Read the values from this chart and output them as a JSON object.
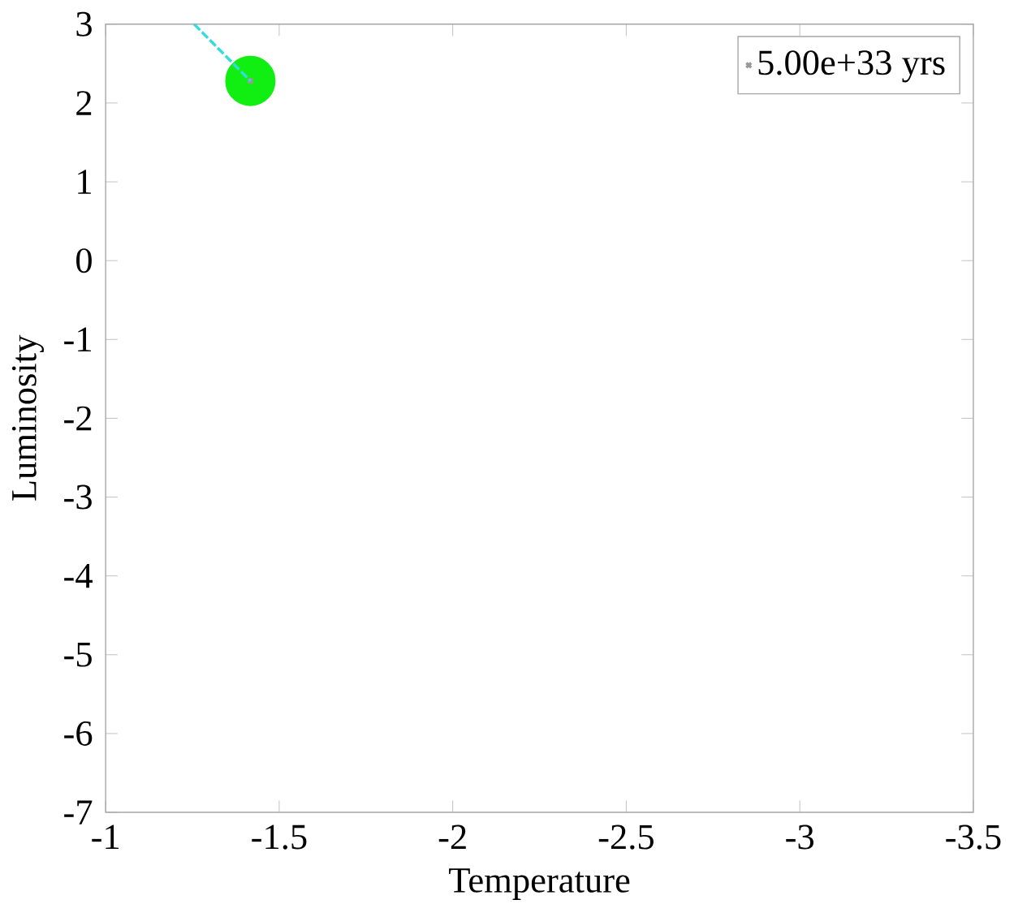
{
  "chart_data": {
    "type": "scatter",
    "xlabel": "Temperature",
    "ylabel": "Luminosity",
    "xlim": [
      -1,
      -3.5
    ],
    "ylim": [
      -7,
      3
    ],
    "xticks": [
      -1,
      -1.5,
      -2,
      -2.5,
      -3,
      -3.5
    ],
    "yticks": [
      -7,
      -6,
      -5,
      -4,
      -3,
      -2,
      -1,
      0,
      1,
      2,
      3
    ],
    "grid": false,
    "legend": "top right",
    "x": [
      -1.417
    ],
    "series": [
      {
        "color": "#11ee11",
        "marker": "circle",
        "values": [
          2.28
        ]
      },
      {
        "name": "5.00e+33 yrs",
        "color": "#999999",
        "marker": "cross",
        "values": [
          2.28
        ]
      },
      {
        "type": "line",
        "color": "#33dddd",
        "line_style": "dashed",
        "marker": "none",
        "x": [
          -1.255,
          -1.417
        ],
        "values": [
          3,
          2.28
        ]
      }
    ]
  }
}
